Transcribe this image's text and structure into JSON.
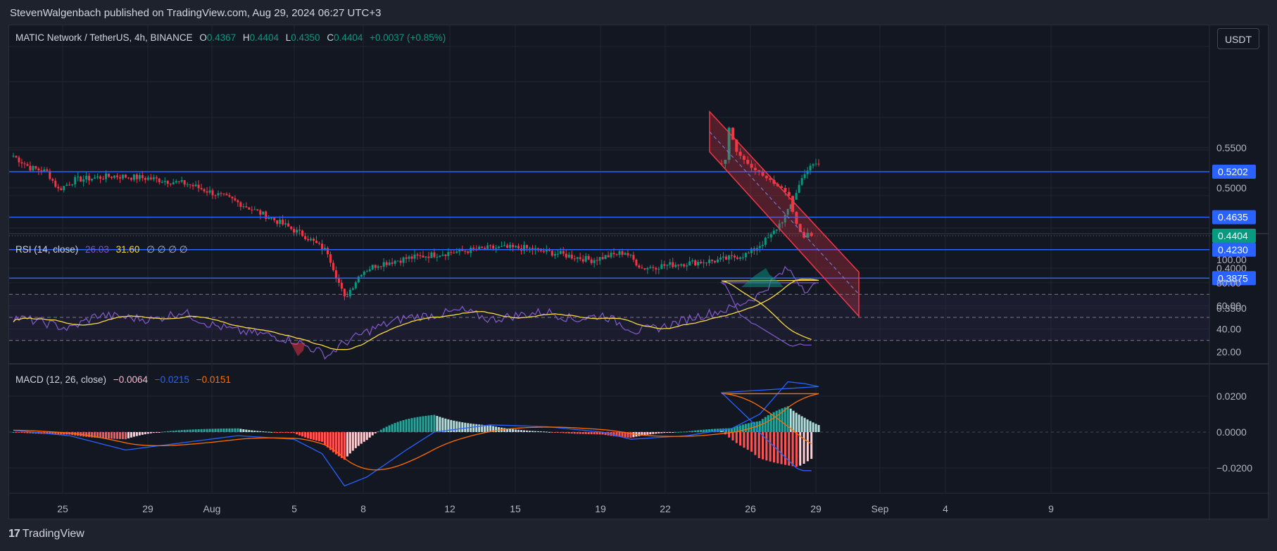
{
  "header": {
    "publisher": "StevenWalgenbach published on TradingView.com, Aug 29, 2024 06:27 UTC+3"
  },
  "currency_button": "USDT",
  "legend_main": {
    "symbol": "MATIC Network / TetherUS, 4h, BINANCE",
    "o_label": "O",
    "o": "0.4367",
    "h_label": "H",
    "h": "0.4404",
    "l_label": "L",
    "l": "0.4350",
    "c_label": "C",
    "c": "0.4404",
    "change": "+0.0037 (+0.85%)"
  },
  "legend_rsi": {
    "name": "RSI (14, close)",
    "v1": "26.03",
    "v2": "31.60",
    "extra": "∅ ∅ ∅ ∅"
  },
  "legend_macd": {
    "name": "MACD (12, 26, close)",
    "v1": "−0.0064",
    "v2": "−0.0215",
    "v3": "−0.0151"
  },
  "price_axis": [
    "0.5500",
    "0.5000",
    "0.4000",
    "0.3500"
  ],
  "price_badges": [
    {
      "label": "0.5202",
      "color": "#2962ff"
    },
    {
      "label": "0.4635",
      "color": "#2962ff"
    },
    {
      "label": "0.4404",
      "color": "#089981"
    },
    {
      "label": "0.4230",
      "color": "#2962ff"
    },
    {
      "label": "0.3875",
      "color": "#2962ff"
    }
  ],
  "rsi_axis": [
    "100.00",
    "80.00",
    "60.00",
    "40.00",
    "20.00"
  ],
  "macd_axis": [
    "0.0200",
    "0.0000",
    "−0.0200"
  ],
  "time_axis": [
    "25",
    "29",
    "Aug",
    "5",
    "8",
    "12",
    "15",
    "19",
    "22",
    "26",
    "29",
    "Sep",
    "4",
    "9"
  ],
  "footer": {
    "brand": "TradingView",
    "logo": "17"
  },
  "colors": {
    "up": "#089981",
    "down": "#f23645",
    "level": "#2962ff",
    "rsi": "#7e57c2",
    "rsi_ma": "#f7d945",
    "macd": "#2962ff",
    "signal": "#ff6d00",
    "channel": "#f23645"
  },
  "chart_data": {
    "type": "candlestick",
    "levels": [
      0.5202,
      0.4635,
      0.423,
      0.3875
    ],
    "last_close": 0.4404,
    "ylim": [
      0.33,
      0.6
    ],
    "channel": {
      "top_start": 0.595,
      "top_end": 0.395,
      "bottom_start": 0.545,
      "bottom_end": 0.34
    },
    "rsi_ylim": [
      10,
      100
    ],
    "rsi_bands": [
      70,
      50,
      30
    ],
    "macd_ylim": [
      -0.032,
      0.032
    ],
    "ohlc_key": [
      [
        "Jul 23",
        0.54
      ],
      [
        "Jul 25",
        0.52
      ],
      [
        "Jul 26",
        0.495
      ],
      [
        "Jul 29",
        0.515
      ],
      [
        "Aug 1",
        0.5
      ],
      [
        "Aug 3",
        0.468
      ],
      [
        "Aug 5",
        0.36
      ],
      [
        "Aug 6",
        0.405
      ],
      [
        "Aug 8",
        0.418
      ],
      [
        "Aug 10",
        0.428
      ],
      [
        "Aug 12",
        0.418
      ],
      [
        "Aug 15",
        0.42
      ],
      [
        "Aug 17",
        0.4
      ],
      [
        "Aug 19",
        0.41
      ],
      [
        "Aug 21",
        0.48
      ],
      [
        "Aug 22",
        0.525
      ],
      [
        "Aug 23",
        0.53
      ],
      [
        "Aug 24",
        0.575
      ],
      [
        "Aug 26",
        0.52
      ],
      [
        "Aug 27",
        0.505
      ],
      [
        "Aug 28",
        0.445
      ],
      [
        "Aug 29",
        0.4404
      ]
    ],
    "rsi_key": [
      50,
      45,
      52,
      40,
      48,
      45,
      35,
      17,
      45,
      55,
      58,
      52,
      48,
      42,
      48,
      55,
      92,
      75,
      78,
      65,
      45,
      26
    ],
    "macd_key": [
      0.001,
      -0.01,
      -0.004,
      -0.002,
      -0.01,
      -0.03,
      -0.015,
      0.003,
      0.004,
      0.0,
      -0.004,
      0.002,
      0.01,
      0.028,
      0.027,
      0.022,
      0.0,
      -0.021
    ]
  }
}
